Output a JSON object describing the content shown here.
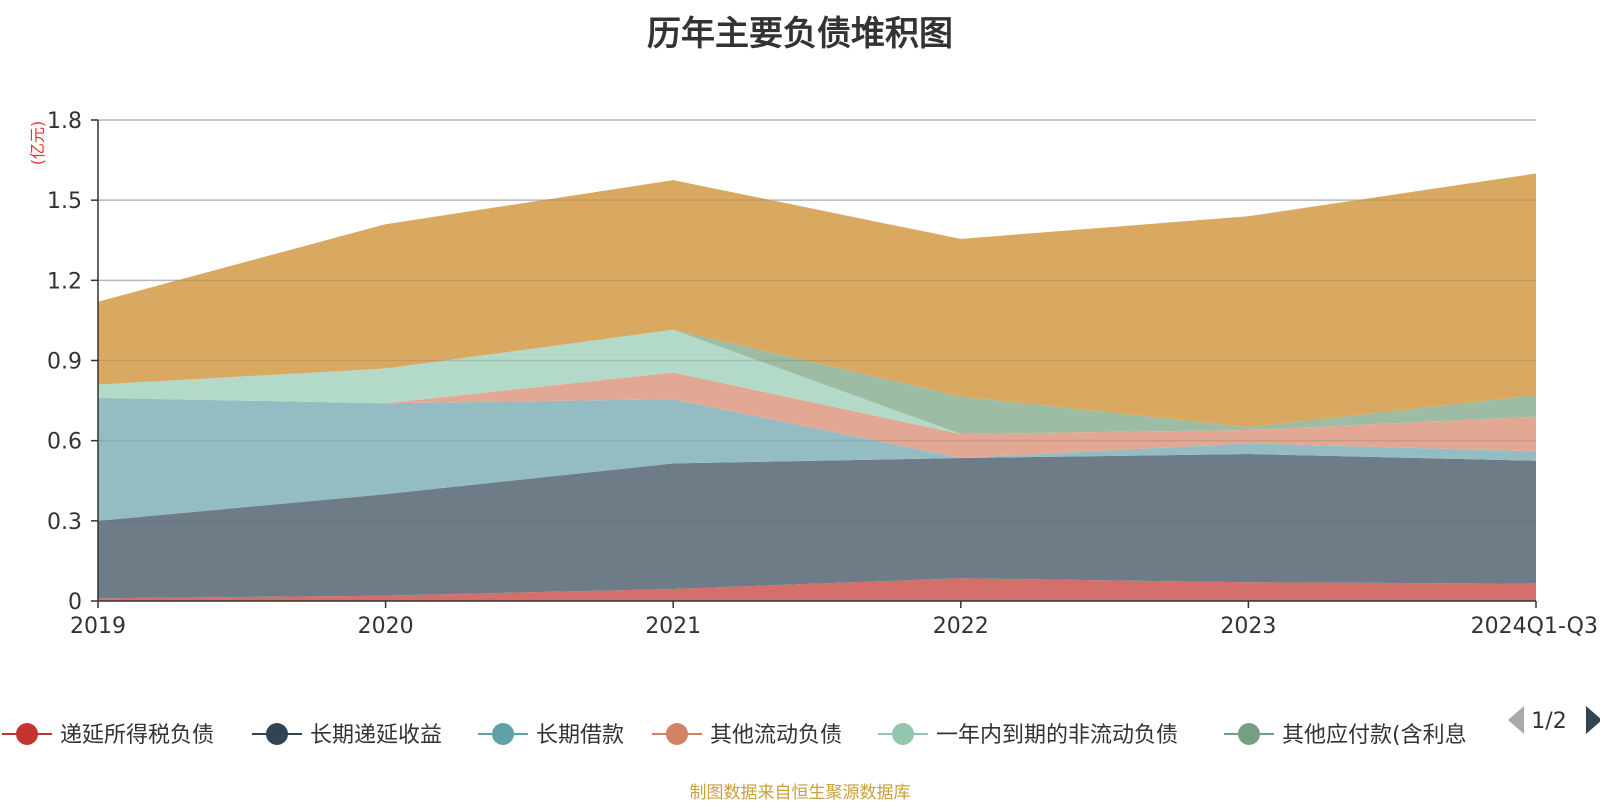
{
  "title": "历年主要负债堆积图",
  "source": "制图数据来自恒生聚源数据库",
  "chart_data": {
    "type": "area",
    "stacked": true,
    "unit_label": "(亿元)",
    "categories": [
      "2019",
      "2020",
      "2021",
      "2022",
      "2023",
      "2024Q1-Q3"
    ],
    "ylim": [
      0,
      1.8
    ],
    "yticks": [
      0,
      0.3,
      0.6,
      0.9,
      1.2,
      1.5,
      1.8
    ],
    "ytick_labels": [
      "0",
      "0.3",
      "0.6",
      "0.9",
      "1.2",
      "1.5",
      "1.8"
    ],
    "grid": true,
    "legend_position": "bottom",
    "series": [
      {
        "name": "递延所得税负债",
        "color": "#c23531",
        "fill": "#d46f6c",
        "values": [
          0.01,
          0.02,
          0.045,
          0.085,
          0.07,
          0.065
        ]
      },
      {
        "name": "长期递延收益",
        "color": "#2f4554",
        "fill": "#6e7c87",
        "values": [
          0.29,
          0.38,
          0.47,
          0.45,
          0.48,
          0.46
        ]
      },
      {
        "name": "长期借款",
        "color": "#61a0a8",
        "fill": "#93bdc2",
        "values": [
          0.46,
          0.34,
          0.24,
          0.0,
          0.04,
          0.035
        ]
      },
      {
        "name": "其他流动负债",
        "color": "#d48265",
        "fill": "#e2a894",
        "values": [
          0.0,
          0.0,
          0.1,
          0.09,
          0.05,
          0.13
        ]
      },
      {
        "name": "一年内到期的非流动负债",
        "color": "#91c7ae",
        "fill": "#b3dac8",
        "values": [
          0.05,
          0.13,
          0.16,
          0.0,
          0.0,
          0.0
        ]
      },
      {
        "name": "其他应付款(含利息",
        "color": "#749f83",
        "fill": "#9dbca4",
        "values": [
          0.0,
          0.0,
          0.0,
          0.14,
          0.01,
          0.08
        ]
      },
      {
        "name": "",
        "color": "#ca8622",
        "fill": "#d9a962",
        "values": [
          0.31,
          0.54,
          0.56,
          0.59,
          0.79,
          0.83
        ]
      }
    ]
  },
  "legend": {
    "page_indicator": "1/2"
  }
}
